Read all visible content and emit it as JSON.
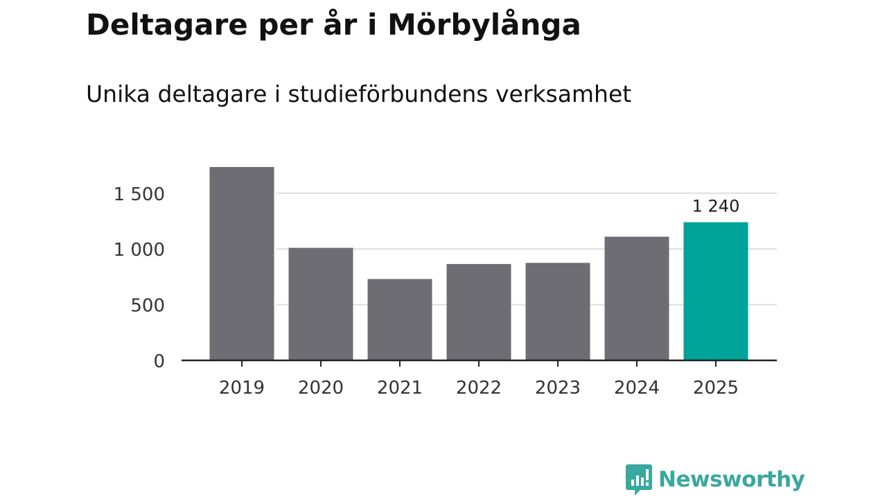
{
  "title": "Deltagare per år i Mörbylånga",
  "subtitle": "Unika deltagare i studieförbundens verksamhet",
  "brand": {
    "name": "Newsworthy",
    "icon": "newsworthy-logo-icon",
    "color": "#3aa89e"
  },
  "colors": {
    "bar": "#6e6d73",
    "highlight": "#00a398",
    "grid": "#dddddd",
    "axis": "#222222"
  },
  "chart_data": {
    "type": "bar",
    "categories": [
      "2019",
      "2020",
      "2021",
      "2022",
      "2023",
      "2024",
      "2025"
    ],
    "values": [
      1735,
      1010,
      730,
      865,
      875,
      1110,
      1240
    ],
    "highlight_index": 6,
    "data_labels": [
      {
        "index": 6,
        "text": "1 240"
      }
    ],
    "ylim": [
      0,
      1750
    ],
    "yticks": [
      {
        "value": 0,
        "label": "0"
      },
      {
        "value": 500,
        "label": "500"
      },
      {
        "value": 1000,
        "label": "1 000"
      },
      {
        "value": 1500,
        "label": "1 500"
      }
    ],
    "grid": true,
    "title": "Deltagare per år i Mörbylånga",
    "xlabel": "",
    "ylabel": ""
  }
}
